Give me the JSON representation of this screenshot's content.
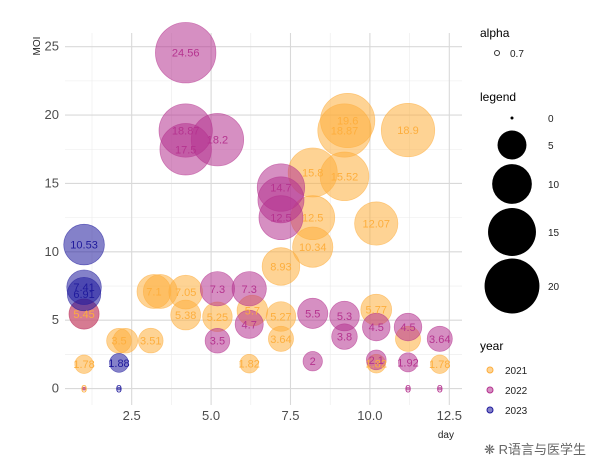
{
  "chart_data": {
    "type": "scatter",
    "xlabel": "day",
    "ylabel": "MOI",
    "xlim": [
      0.4,
      12.9
    ],
    "ylim": [
      -1.2,
      26
    ],
    "x_ticks": [
      2.5,
      5.0,
      7.5,
      10.0,
      12.5
    ],
    "x_tick_labels": [
      "2.5",
      "5.0",
      "7.5",
      "10.0",
      "12.5"
    ],
    "y_ticks": [
      0,
      5,
      10,
      15,
      20,
      25
    ],
    "y_tick_labels": [
      "0",
      "5",
      "10",
      "15",
      "20",
      "25"
    ],
    "grid": true,
    "point_alpha": 0.55,
    "legends": {
      "alpha": {
        "title": "alpha",
        "items": [
          {
            "label": "0.7"
          }
        ]
      },
      "size": {
        "title": "legend",
        "items": [
          {
            "label": "0",
            "value": 0
          },
          {
            "label": "5",
            "value": 5
          },
          {
            "label": "10",
            "value": 10
          },
          {
            "label": "15",
            "value": 15
          },
          {
            "label": "20",
            "value": 20
          }
        ]
      },
      "color": {
        "title": "year",
        "items": [
          {
            "label": "2021",
            "color": "#fdae3d"
          },
          {
            "label": "2022",
            "color": "#b5338f"
          },
          {
            "label": "2023",
            "color": "#1f1a9c"
          }
        ]
      }
    },
    "series": [
      {
        "name": "2021",
        "color": "#fdae3d",
        "points": [
          {
            "x": 1,
            "y": 1.78,
            "label": "1.78"
          },
          {
            "x": 1,
            "y": 0,
            "label": "0"
          },
          {
            "x": 1,
            "y": 5.45,
            "label": "5.45"
          },
          {
            "x": 2.1,
            "y": 3.5,
            "label": "3.5"
          },
          {
            "x": 2.3,
            "y": 3.5,
            "label": ""
          },
          {
            "x": 3.1,
            "y": 3.51,
            "label": "3.51"
          },
          {
            "x": 3.2,
            "y": 7.1,
            "label": "7.1"
          },
          {
            "x": 3.4,
            "y": 7.1,
            "label": ""
          },
          {
            "x": 4.2,
            "y": 7.05,
            "label": "7.05"
          },
          {
            "x": 4.2,
            "y": 5.38,
            "label": "5.38"
          },
          {
            "x": 5.2,
            "y": 5.25,
            "label": "5.25"
          },
          {
            "x": 6.2,
            "y": 1.82,
            "label": "1.82"
          },
          {
            "x": 6.3,
            "y": 5.7,
            "label": "5.7"
          },
          {
            "x": 7.2,
            "y": 5.27,
            "label": "5.27"
          },
          {
            "x": 7.2,
            "y": 3.64,
            "label": "3.64"
          },
          {
            "x": 7.2,
            "y": 8.93,
            "label": "8.93"
          },
          {
            "x": 8.2,
            "y": 12.5,
            "label": "12.5"
          },
          {
            "x": 8.2,
            "y": 10.34,
            "label": "10.34"
          },
          {
            "x": 8.2,
            "y": 15.8,
            "label": "15.8"
          },
          {
            "x": 9.2,
            "y": 15.52,
            "label": "15.52"
          },
          {
            "x": 9.3,
            "y": 19.6,
            "label": "19.6"
          },
          {
            "x": 9.2,
            "y": 18.87,
            "label": "18.87"
          },
          {
            "x": 10.2,
            "y": 12.07,
            "label": "12.07"
          },
          {
            "x": 10.2,
            "y": 5.77,
            "label": "5.77"
          },
          {
            "x": 10.2,
            "y": 1.82,
            "label": "1.82"
          },
          {
            "x": 11.2,
            "y": 18.9,
            "label": "18.9"
          },
          {
            "x": 11.2,
            "y": 3.64,
            "label": ""
          },
          {
            "x": 12.2,
            "y": 1.78,
            "label": "1.78"
          }
        ]
      },
      {
        "name": "2022",
        "color": "#b5338f",
        "points": [
          {
            "x": 1,
            "y": 5.45,
            "label": ""
          },
          {
            "x": 1,
            "y": 0,
            "label": ""
          },
          {
            "x": 4.2,
            "y": 24.56,
            "label": "24.56"
          },
          {
            "x": 4.2,
            "y": 18.87,
            "label": "18.87"
          },
          {
            "x": 4.2,
            "y": 17.5,
            "label": "17.5"
          },
          {
            "x": 5.2,
            "y": 18.2,
            "label": "18.2"
          },
          {
            "x": 5.2,
            "y": 7.3,
            "label": "7.3"
          },
          {
            "x": 5.2,
            "y": 3.5,
            "label": "3.5"
          },
          {
            "x": 6.2,
            "y": 7.3,
            "label": "7.3"
          },
          {
            "x": 6.2,
            "y": 4.7,
            "label": "4.7"
          },
          {
            "x": 7.2,
            "y": 14.7,
            "label": "14.7"
          },
          {
            "x": 7.2,
            "y": 13.8,
            "label": ""
          },
          {
            "x": 7.2,
            "y": 12.5,
            "label": "12.5"
          },
          {
            "x": 8.2,
            "y": 5.5,
            "label": "5.5"
          },
          {
            "x": 8.2,
            "y": 2,
            "label": "2"
          },
          {
            "x": 9.2,
            "y": 5.3,
            "label": "5.3"
          },
          {
            "x": 9.2,
            "y": 3.8,
            "label": "3.8"
          },
          {
            "x": 10.2,
            "y": 4.5,
            "label": "4.5"
          },
          {
            "x": 10.2,
            "y": 2.1,
            "label": "2.1"
          },
          {
            "x": 11.2,
            "y": 4.5,
            "label": "4.5"
          },
          {
            "x": 11.2,
            "y": 1.92,
            "label": "1.92"
          },
          {
            "x": 11.2,
            "y": 0,
            "label": "0"
          },
          {
            "x": 12.2,
            "y": 3.64,
            "label": "3.64"
          },
          {
            "x": 12.2,
            "y": 0,
            "label": "0"
          }
        ]
      },
      {
        "name": "2023",
        "color": "#1f1a9c",
        "points": [
          {
            "x": 1,
            "y": 10.53,
            "label": "10.53"
          },
          {
            "x": 1,
            "y": 7.41,
            "label": "7.41"
          },
          {
            "x": 1,
            "y": 6.91,
            "label": "6.91"
          },
          {
            "x": 2.1,
            "y": 1.88,
            "label": "1.88"
          },
          {
            "x": 2.1,
            "y": 0,
            "label": "0"
          }
        ]
      }
    ]
  },
  "watermark": "R语言与医学生"
}
